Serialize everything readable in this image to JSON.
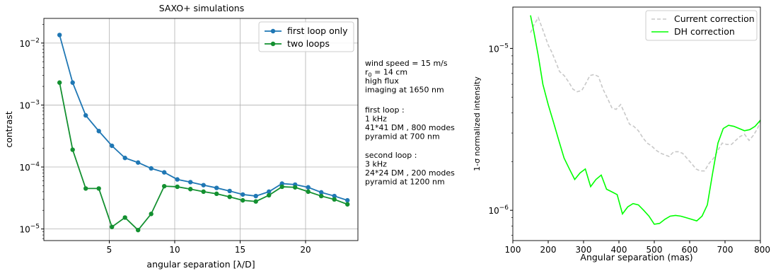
{
  "chart_data": [
    {
      "type": "line",
      "title": "SAXO+ simulations",
      "xlabel": "angular separation [λ/D]",
      "ylabel": "contrast",
      "xlim": [
        0,
        24
      ],
      "ylim": [
        6.5e-06,
        0.025
      ],
      "yscale": "log",
      "grid": true,
      "legend_position": "top-right",
      "x_ticks": [
        "5",
        "10",
        "15",
        "20"
      ],
      "y_ticks": [
        {
          "base": "10",
          "exp": "−2",
          "value": 0.01
        },
        {
          "base": "10",
          "exp": "−3",
          "value": 0.001
        },
        {
          "base": "10",
          "exp": "−4",
          "value": 0.0001
        },
        {
          "base": "10",
          "exp": "−5",
          "value": 1e-05
        }
      ],
      "x": [
        1.2,
        2.2,
        3.2,
        4.2,
        5.2,
        6.2,
        7.2,
        8.2,
        9.2,
        10.2,
        11.2,
        12.2,
        13.2,
        14.2,
        15.2,
        16.2,
        17.2,
        18.2,
        19.2,
        20.2,
        21.2,
        22.2,
        23.2
      ],
      "series": [
        {
          "name": "first loop only",
          "color": "#1f77b4",
          "values": [
            0.0135,
            0.0023,
            0.00068,
            0.00038,
            0.00022,
            0.00014,
            0.000118,
            9.5e-05,
            8.2e-05,
            6.3e-05,
            5.7e-05,
            5.1e-05,
            4.6e-05,
            4.1e-05,
            3.6e-05,
            3.4e-05,
            4e-05,
            5.4e-05,
            5.2e-05,
            4.7e-05,
            3.9e-05,
            3.4e-05,
            2.9e-05
          ]
        },
        {
          "name": "two loops",
          "color": "#139030",
          "values": [
            0.0023,
            0.00019,
            4.5e-05,
            4.5e-05,
            1.08e-05,
            1.53e-05,
            9.6e-06,
            1.75e-05,
            4.9e-05,
            4.8e-05,
            4.4e-05,
            4e-05,
            3.7e-05,
            3.3e-05,
            2.9e-05,
            2.78e-05,
            3.5e-05,
            4.8e-05,
            4.7e-05,
            4e-05,
            3.4e-05,
            3e-05,
            2.5e-05
          ]
        }
      ]
    },
    {
      "type": "line",
      "title": "",
      "xlabel": "Angular separation (mas)",
      "ylabel": "1-σ normalized intensity",
      "xlim": [
        100,
        800
      ],
      "ylim": [
        6.5e-07,
        1.8e-05
      ],
      "yscale": "log",
      "grid": false,
      "legend_position": "top-right",
      "x_ticks": [
        "100",
        "200",
        "300",
        "400",
        "500",
        "600",
        "700",
        "800"
      ],
      "y_ticks": [
        {
          "base": "10",
          "exp": "−5",
          "value": 1e-05
        },
        {
          "base": "10",
          "exp": "−6",
          "value": 1e-06
        }
      ],
      "series": [
        {
          "name": "Current correction",
          "color": "#c8c8c8",
          "dashed": true,
          "x": [
            150,
            160,
            172,
            185,
            200,
            210,
            222,
            232,
            245,
            258,
            270,
            282,
            295,
            305,
            318,
            330,
            342,
            355,
            368,
            380,
            392,
            405,
            418,
            430,
            442,
            455,
            468,
            480,
            492,
            505,
            518,
            530,
            542,
            555,
            568,
            580,
            592,
            605,
            618,
            630,
            642,
            655,
            668,
            680,
            692,
            705,
            718,
            730,
            742,
            755,
            768,
            780,
            792,
            800
          ],
          "values": [
            1.25e-05,
            1.4e-05,
            1.55e-05,
            1.3e-05,
            1.05e-05,
            9.5e-06,
            8.2e-06,
            7.2e-06,
            6.8e-06,
            6.2e-06,
            5.6e-06,
            5.4e-06,
            5.5e-06,
            6e-06,
            6.8e-06,
            6.9e-06,
            6.7e-06,
            5.6e-06,
            4.9e-06,
            4.3e-06,
            4.2e-06,
            4.5e-06,
            3.9e-06,
            3.4e-06,
            3.3e-06,
            3.1e-06,
            2.8e-06,
            2.6e-06,
            2.5e-06,
            2.35e-06,
            2.25e-06,
            2.2e-06,
            2.15e-06,
            2.3e-06,
            2.3e-06,
            2.25e-06,
            2.1e-06,
            1.95e-06,
            1.8e-06,
            1.75e-06,
            1.75e-06,
            1.95e-06,
            2.1e-06,
            2.35e-06,
            2.6e-06,
            2.55e-06,
            2.55e-06,
            2.7e-06,
            2.85e-06,
            2.95e-06,
            2.7e-06,
            2.9e-06,
            3.2e-06,
            3.55e-06
          ]
        },
        {
          "name": "DH correction",
          "color": "#00ff00",
          "dashed": false,
          "x": [
            150,
            160,
            172,
            185,
            200,
            215,
            230,
            245,
            260,
            275,
            290,
            305,
            320,
            335,
            350,
            365,
            380,
            395,
            410,
            425,
            440,
            455,
            470,
            485,
            500,
            515,
            530,
            545,
            560,
            575,
            590,
            605,
            620,
            635,
            650,
            665,
            680,
            695,
            710,
            725,
            740,
            755,
            770,
            785,
            800
          ],
          "values": [
            1.6e-05,
            1.25e-05,
            9e-06,
            6e-06,
            4.5e-06,
            3.5e-06,
            2.7e-06,
            2.1e-06,
            1.8e-06,
            1.55e-06,
            1.7e-06,
            1.8e-06,
            1.4e-06,
            1.55e-06,
            1.65e-06,
            1.35e-06,
            1.3e-06,
            1.25e-06,
            9.5e-07,
            1.05e-06,
            1.1e-06,
            1.08e-06,
            1e-06,
            9.2e-07,
            8.2e-07,
            8.3e-07,
            8.8e-07,
            9.2e-07,
            9.3e-07,
            9.2e-07,
            9e-07,
            8.8e-07,
            8.6e-07,
            9.2e-07,
            1.08e-06,
            1.7e-06,
            2.6e-06,
            3.2e-06,
            3.35e-06,
            3.3e-06,
            3.2e-06,
            3.1e-06,
            3.15e-06,
            3.3e-06,
            3.6e-06
          ]
        }
      ]
    }
  ],
  "annotation": {
    "block1": [
      {
        "pre": "wind speed = 15 m/s"
      },
      {
        "pre": "r",
        "sub": "0",
        "post": " = 14 cm"
      },
      {
        "pre": "high flux"
      },
      {
        "pre": "imaging at 1650 nm"
      }
    ],
    "block2": [
      {
        "pre": "first loop :"
      },
      {
        "pre": "1 kHz"
      },
      {
        "pre": "41*41 DM , 800 modes"
      },
      {
        "pre": "pyramid at 700 nm"
      }
    ],
    "block3": [
      {
        "pre": "second loop :"
      },
      {
        "pre": "3 kHz"
      },
      {
        "pre": "24*24 DM , 200 modes"
      },
      {
        "pre": "pyramid at 1200 nm"
      }
    ]
  }
}
